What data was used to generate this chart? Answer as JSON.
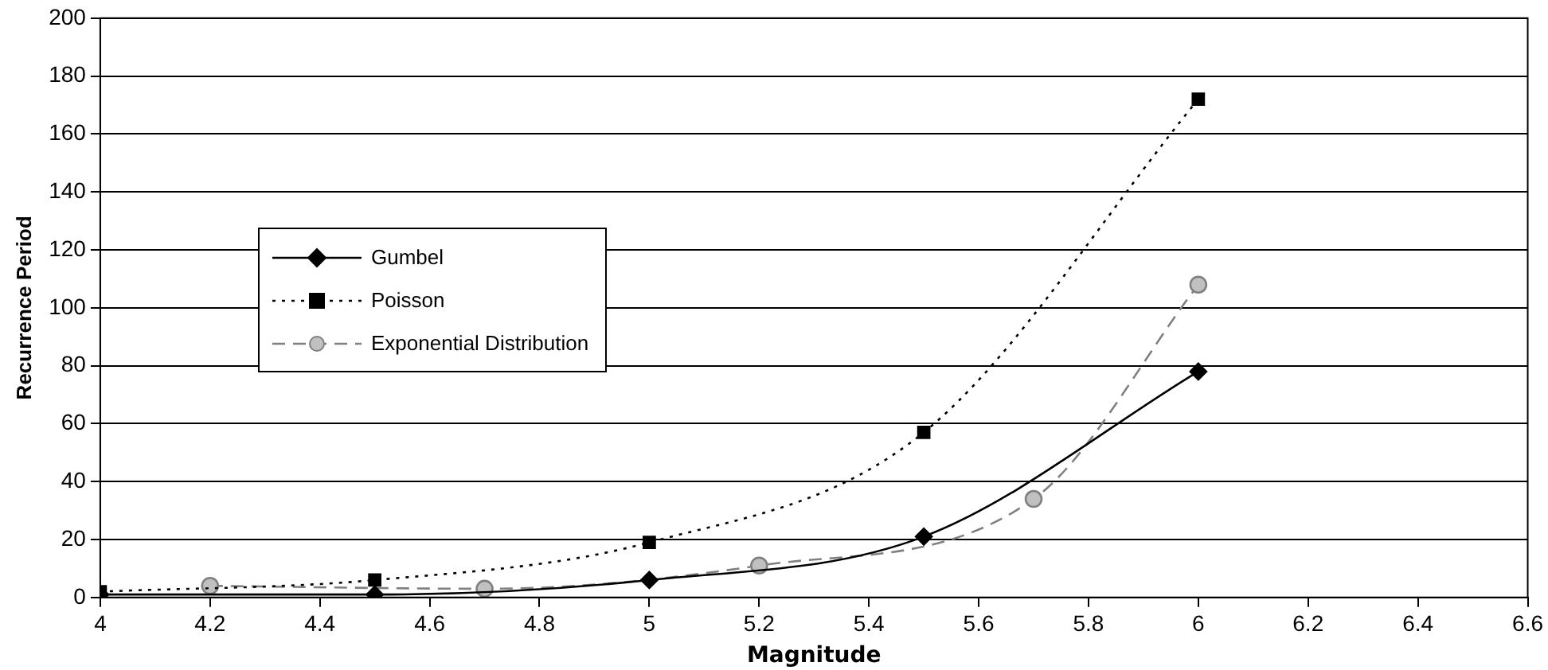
{
  "chart_data": {
    "type": "line",
    "xlabel": "Magnitude",
    "ylabel": "Recurrence Period",
    "xlim": [
      4,
      6.6
    ],
    "xticks": [
      4,
      4.2,
      4.4,
      4.6,
      4.8,
      5,
      5.2,
      5.4,
      5.6,
      5.8,
      6,
      6.2,
      6.4,
      6.6
    ],
    "ylim": [
      0,
      200
    ],
    "yticks": [
      0,
      20,
      40,
      60,
      80,
      100,
      120,
      140,
      160,
      180,
      200
    ],
    "grid": "y",
    "legend": "left",
    "series": [
      {
        "name": "Gumbel",
        "color": "#000000",
        "marker": "diamond",
        "line_style": "solid",
        "x": [
          4,
          4.5,
          5,
          5.5,
          6
        ],
        "values": [
          1,
          1,
          6,
          21,
          78
        ]
      },
      {
        "name": "Poisson",
        "color": "#000000",
        "marker": "square",
        "line_style": "dotted",
        "x": [
          4,
          4.5,
          5,
          5.5,
          6
        ],
        "values": [
          2,
          6,
          19,
          57,
          172
        ]
      },
      {
        "name": "Exponential Distribution",
        "color": "#808080",
        "marker": "circle",
        "line_style": "dashed",
        "x": [
          4.2,
          4.7,
          5.2,
          5.7,
          6
        ],
        "values": [
          4,
          3,
          11,
          34,
          108
        ]
      }
    ]
  }
}
